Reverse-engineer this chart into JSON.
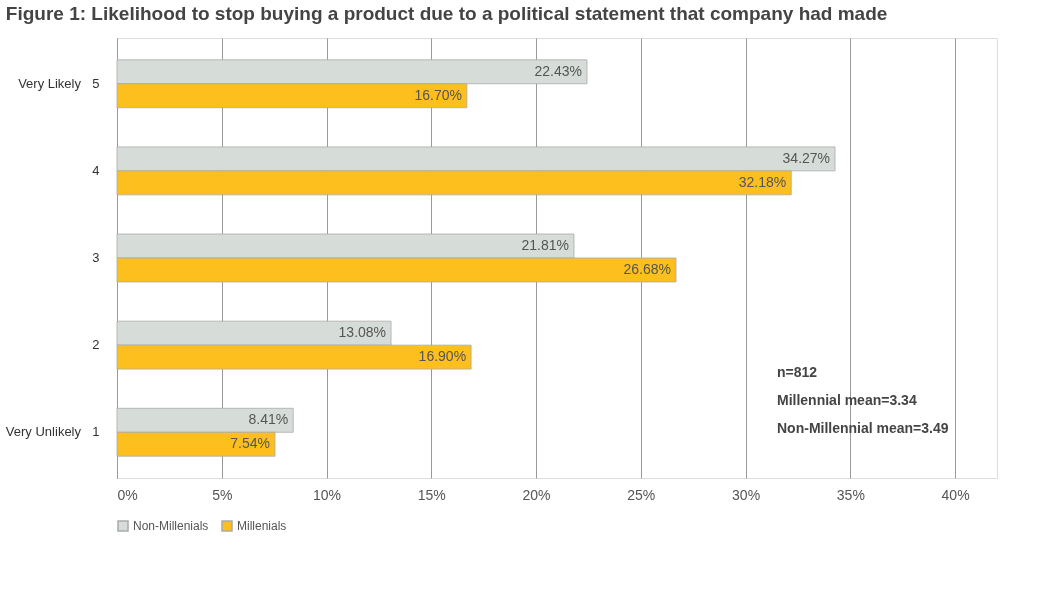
{
  "chart_data": {
    "type": "bar",
    "orientation": "horizontal",
    "title": "Figure 1: Likelihood to stop buying a product due to a political statement that company had made",
    "categories": [
      "5",
      "4",
      "3",
      "2",
      "1"
    ],
    "series": [
      {
        "name": "Non-Millenials",
        "color": "#d6ddd9",
        "values": [
          22.43,
          34.27,
          21.81,
          13.08,
          8.41
        ],
        "value_labels": [
          "22.43%",
          "34.27%",
          "21.81%",
          "13.08%",
          "8.41%"
        ]
      },
      {
        "name": "Millenials",
        "color": "#fcbf1e",
        "values": [
          16.7,
          32.18,
          26.68,
          16.9,
          7.54
        ],
        "value_labels": [
          "16.70%",
          "32.18%",
          "26.68%",
          "16.90%",
          "7.54%"
        ]
      }
    ],
    "xlim": [
      0,
      42
    ],
    "xticks": [
      {
        "value": 0,
        "label": "0%"
      },
      {
        "value": 5,
        "label": "5%"
      },
      {
        "value": 10,
        "label": "10%"
      },
      {
        "value": 15,
        "label": "15%"
      },
      {
        "value": 20,
        "label": "20%"
      },
      {
        "value": 25,
        "label": "25%"
      },
      {
        "value": 30,
        "label": "30%"
      },
      {
        "value": 35,
        "label": "35%"
      },
      {
        "value": 40,
        "label": "40%"
      }
    ],
    "grid": "x",
    "legend": "bottom",
    "annotations": [
      "Very Likely",
      "Very Unlikely",
      "n=812",
      "Millennial mean=3.34",
      "Non-Millennial mean=3.49"
    ]
  }
}
